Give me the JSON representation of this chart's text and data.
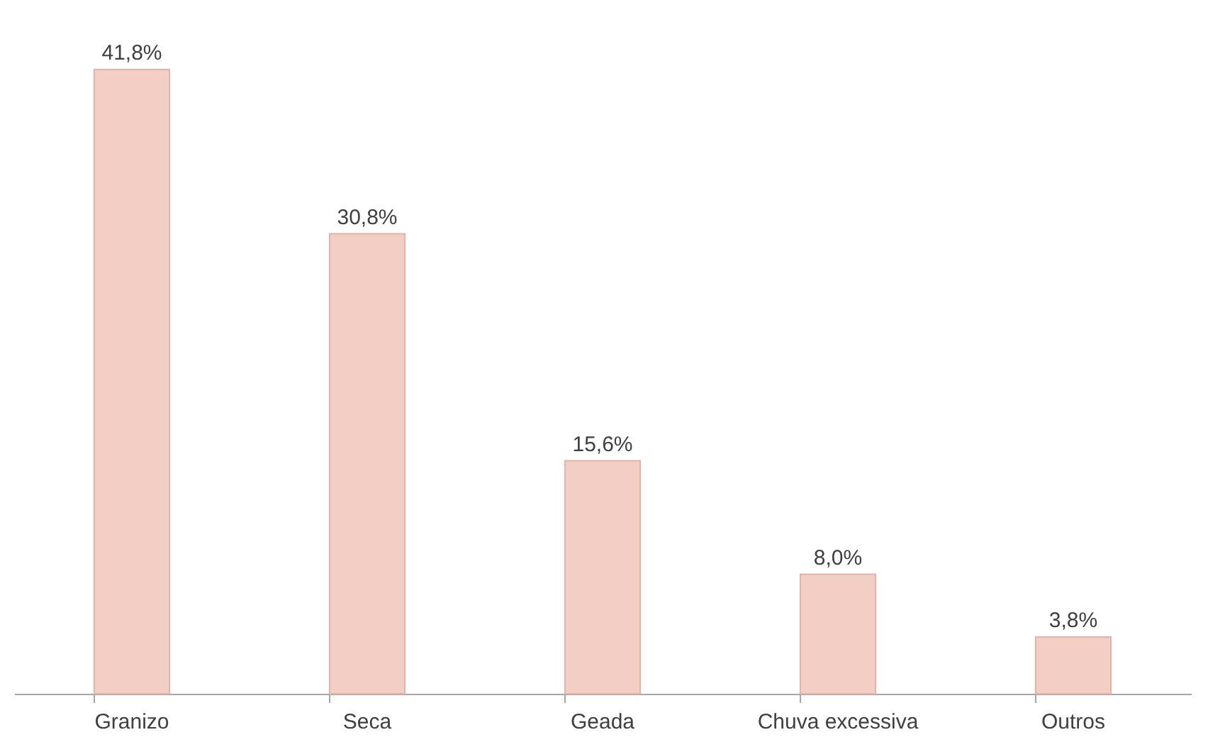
{
  "chart_data": {
    "type": "bar",
    "categories": [
      "Granizo",
      "Seca",
      "Geada",
      "Chuva excessiva",
      "Outros"
    ],
    "values": [
      41.8,
      30.8,
      15.6,
      8.0,
      3.8
    ],
    "value_labels": [
      "41,8%",
      "30,8%",
      "15,6%",
      "8,0%",
      "3,8%"
    ],
    "color": "#f2cec5",
    "tick_labels": "x",
    "grid": false
  }
}
